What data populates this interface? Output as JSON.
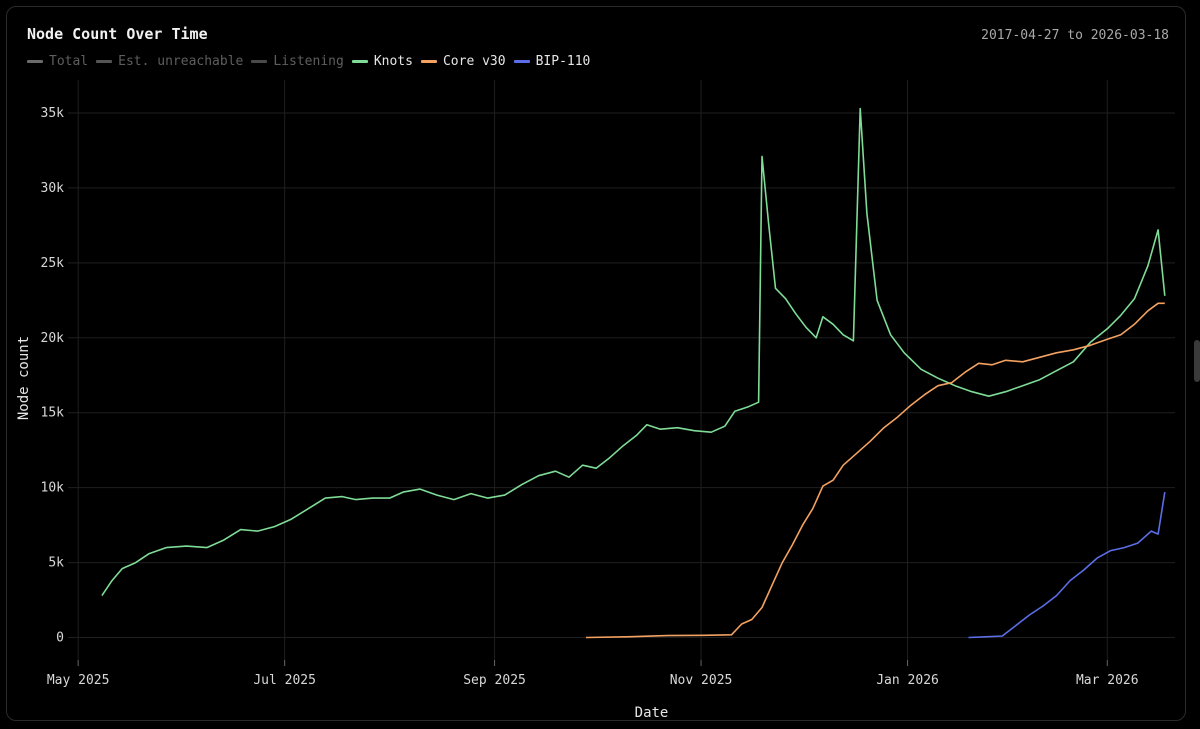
{
  "header": {
    "title": "Node Count Over Time",
    "date_range": "2017-04-27 to 2026-03-18"
  },
  "chart_data": {
    "type": "line",
    "title": "Node Count Over Time",
    "xlabel": "Date",
    "ylabel": "Node count",
    "x_ticks": [
      {
        "date": "2025-05-01",
        "label": "May 2025"
      },
      {
        "date": "2025-07-01",
        "label": "Jul 2025"
      },
      {
        "date": "2025-09-01",
        "label": "Sep 2025"
      },
      {
        "date": "2025-11-01",
        "label": "Nov 2025"
      },
      {
        "date": "2026-01-01",
        "label": "Jan 2026"
      },
      {
        "date": "2026-03-01",
        "label": "Mar 2026"
      }
    ],
    "y_ticks": [
      {
        "value": 0,
        "label": "0"
      },
      {
        "value": 5000,
        "label": "5k"
      },
      {
        "value": 10000,
        "label": "10k"
      },
      {
        "value": 15000,
        "label": "15k"
      },
      {
        "value": 20000,
        "label": "20k"
      },
      {
        "value": 25000,
        "label": "25k"
      },
      {
        "value": 30000,
        "label": "30k"
      },
      {
        "value": 35000,
        "label": "35k"
      }
    ],
    "xlim": [
      "2025-04-28",
      "2026-03-21"
    ],
    "ylim": [
      -1500,
      37200
    ],
    "grid": true,
    "legend_position": "top-left",
    "legend": [
      {
        "name": "Total",
        "color": "#6b6b6b",
        "active": false
      },
      {
        "name": "Est. unreachable",
        "color": "#555555",
        "active": false
      },
      {
        "name": "Listening",
        "color": "#4a4a4a",
        "active": false
      },
      {
        "name": "Knots",
        "color": "#7fdc96",
        "active": true
      },
      {
        "name": "Core v30",
        "color": "#f4a261",
        "active": true
      },
      {
        "name": "BIP-110",
        "color": "#5b6ee8",
        "active": true
      }
    ],
    "series": [
      {
        "name": "Knots",
        "color": "#7fdc96",
        "points": [
          [
            "2025-05-08",
            2800
          ],
          [
            "2025-05-11",
            3800
          ],
          [
            "2025-05-14",
            4600
          ],
          [
            "2025-05-18",
            5000
          ],
          [
            "2025-05-22",
            5600
          ],
          [
            "2025-05-27",
            6000
          ],
          [
            "2025-06-02",
            6100
          ],
          [
            "2025-06-08",
            6000
          ],
          [
            "2025-06-13",
            6500
          ],
          [
            "2025-06-18",
            7200
          ],
          [
            "2025-06-23",
            7100
          ],
          [
            "2025-06-28",
            7400
          ],
          [
            "2025-07-03",
            7900
          ],
          [
            "2025-07-08",
            8600
          ],
          [
            "2025-07-13",
            9300
          ],
          [
            "2025-07-18",
            9400
          ],
          [
            "2025-07-22",
            9200
          ],
          [
            "2025-07-27",
            9300
          ],
          [
            "2025-08-01",
            9300
          ],
          [
            "2025-08-05",
            9700
          ],
          [
            "2025-08-10",
            9900
          ],
          [
            "2025-08-15",
            9500
          ],
          [
            "2025-08-20",
            9200
          ],
          [
            "2025-08-25",
            9600
          ],
          [
            "2025-08-30",
            9300
          ],
          [
            "2025-09-04",
            9500
          ],
          [
            "2025-09-09",
            10200
          ],
          [
            "2025-09-14",
            10800
          ],
          [
            "2025-09-19",
            11100
          ],
          [
            "2025-09-23",
            10700
          ],
          [
            "2025-09-27",
            11500
          ],
          [
            "2025-10-01",
            11300
          ],
          [
            "2025-10-05",
            12000
          ],
          [
            "2025-10-09",
            12800
          ],
          [
            "2025-10-13",
            13500
          ],
          [
            "2025-10-16",
            14200
          ],
          [
            "2025-10-20",
            13900
          ],
          [
            "2025-10-25",
            14000
          ],
          [
            "2025-10-30",
            13800
          ],
          [
            "2025-11-04",
            13700
          ],
          [
            "2025-11-08",
            14100
          ],
          [
            "2025-11-11",
            15100
          ],
          [
            "2025-11-15",
            15400
          ],
          [
            "2025-11-18",
            15700
          ],
          [
            "2025-11-19",
            32100
          ],
          [
            "2025-11-21",
            27500
          ],
          [
            "2025-11-23",
            23300
          ],
          [
            "2025-11-26",
            22600
          ],
          [
            "2025-11-29",
            21600
          ],
          [
            "2025-12-02",
            20700
          ],
          [
            "2025-12-05",
            20000
          ],
          [
            "2025-12-07",
            21400
          ],
          [
            "2025-12-10",
            20900
          ],
          [
            "2025-12-13",
            20200
          ],
          [
            "2025-12-16",
            19800
          ],
          [
            "2025-12-18",
            35300
          ],
          [
            "2025-12-20",
            28300
          ],
          [
            "2025-12-23",
            22500
          ],
          [
            "2025-12-27",
            20200
          ],
          [
            "2025-12-31",
            19000
          ],
          [
            "2026-01-05",
            17900
          ],
          [
            "2026-01-10",
            17300
          ],
          [
            "2026-01-15",
            16800
          ],
          [
            "2026-01-20",
            16400
          ],
          [
            "2026-01-25",
            16100
          ],
          [
            "2026-01-30",
            16400
          ],
          [
            "2026-02-04",
            16800
          ],
          [
            "2026-02-09",
            17200
          ],
          [
            "2026-02-14",
            17800
          ],
          [
            "2026-02-19",
            18400
          ],
          [
            "2026-02-24",
            19700
          ],
          [
            "2026-03-01",
            20600
          ],
          [
            "2026-03-05",
            21500
          ],
          [
            "2026-03-09",
            22600
          ],
          [
            "2026-03-13",
            24800
          ],
          [
            "2026-03-16",
            27200
          ],
          [
            "2026-03-18",
            22800
          ]
        ]
      },
      {
        "name": "Core v30",
        "color": "#f4a261",
        "points": [
          [
            "2025-09-28",
            0
          ],
          [
            "2025-10-10",
            50
          ],
          [
            "2025-10-22",
            130
          ],
          [
            "2025-11-02",
            150
          ],
          [
            "2025-11-10",
            180
          ],
          [
            "2025-11-13",
            900
          ],
          [
            "2025-11-16",
            1200
          ],
          [
            "2025-11-19",
            2000
          ],
          [
            "2025-11-22",
            3500
          ],
          [
            "2025-11-25",
            5000
          ],
          [
            "2025-11-28",
            6200
          ],
          [
            "2025-12-01",
            7500
          ],
          [
            "2025-12-04",
            8600
          ],
          [
            "2025-12-07",
            10100
          ],
          [
            "2025-12-10",
            10500
          ],
          [
            "2025-12-13",
            11500
          ],
          [
            "2025-12-17",
            12300
          ],
          [
            "2025-12-21",
            13100
          ],
          [
            "2025-12-25",
            14000
          ],
          [
            "2025-12-29",
            14700
          ],
          [
            "2026-01-02",
            15500
          ],
          [
            "2026-01-06",
            16200
          ],
          [
            "2026-01-10",
            16800
          ],
          [
            "2026-01-14",
            17000
          ],
          [
            "2026-01-18",
            17700
          ],
          [
            "2026-01-22",
            18300
          ],
          [
            "2026-01-26",
            18200
          ],
          [
            "2026-01-30",
            18500
          ],
          [
            "2026-02-04",
            18400
          ],
          [
            "2026-02-09",
            18700
          ],
          [
            "2026-02-14",
            19000
          ],
          [
            "2026-02-19",
            19200
          ],
          [
            "2026-02-24",
            19500
          ],
          [
            "2026-03-01",
            19900
          ],
          [
            "2026-03-05",
            20200
          ],
          [
            "2026-03-09",
            20900
          ],
          [
            "2026-03-13",
            21800
          ],
          [
            "2026-03-16",
            22300
          ],
          [
            "2026-03-18",
            22300
          ]
        ]
      },
      {
        "name": "BIP-110",
        "color": "#5b6ee8",
        "points": [
          [
            "2026-01-19",
            0
          ],
          [
            "2026-01-24",
            50
          ],
          [
            "2026-01-29",
            100
          ],
          [
            "2026-02-02",
            800
          ],
          [
            "2026-02-06",
            1500
          ],
          [
            "2026-02-10",
            2100
          ],
          [
            "2026-02-14",
            2800
          ],
          [
            "2026-02-18",
            3800
          ],
          [
            "2026-02-22",
            4500
          ],
          [
            "2026-02-26",
            5300
          ],
          [
            "2026-03-02",
            5800
          ],
          [
            "2026-03-06",
            6000
          ],
          [
            "2026-03-10",
            6300
          ],
          [
            "2026-03-14",
            7100
          ],
          [
            "2026-03-16",
            6900
          ],
          [
            "2026-03-18",
            9700
          ]
        ]
      }
    ]
  }
}
